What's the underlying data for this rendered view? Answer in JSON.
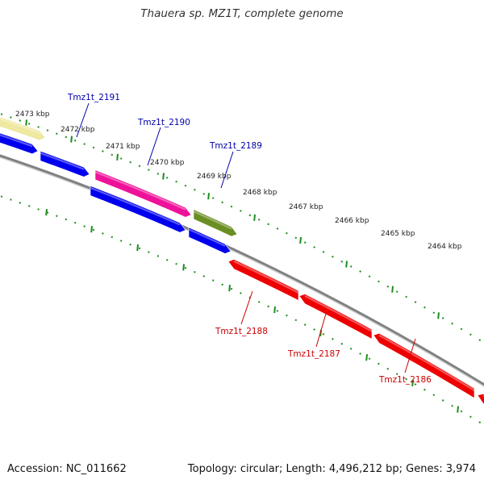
{
  "title": "Thauera sp. MZ1T, complete genome",
  "footer": {
    "accession": "Accession: NC_011662",
    "stats": "Topology: circular; Length: 4,496,212 bp; Genes: 3,974"
  },
  "colors": {
    "backbone": "#808080",
    "tick": "#1e8c1e",
    "forward_label": "#0000aa",
    "reverse_label": "#cc0000"
  },
  "kbp_ticks": [
    {
      "label": "2473 kbp"
    },
    {
      "label": "2472 kbp"
    },
    {
      "label": "2471 kbp"
    },
    {
      "label": "2470 kbp"
    },
    {
      "label": "2469 kbp"
    },
    {
      "label": "2468 kbp"
    },
    {
      "label": "2467 kbp"
    },
    {
      "label": "2466 kbp"
    },
    {
      "label": "2465 kbp"
    },
    {
      "label": "2464 kbp"
    }
  ],
  "genes": [
    {
      "name": "",
      "strand": "+",
      "color": "#eee8a0"
    },
    {
      "name": "",
      "strand": "+",
      "color": "#0000ee"
    },
    {
      "name": "",
      "strand": "+",
      "color": "#0000ee"
    },
    {
      "name": "",
      "strand": "+",
      "color": "#0000ee"
    },
    {
      "name": "",
      "strand": "+",
      "color": "#0000ee"
    },
    {
      "name": "Tmz1t_2190",
      "strand": "+",
      "color": "#ee1199"
    },
    {
      "name": "Tmz1t_2189",
      "strand": "+",
      "color": "#6b8e23"
    },
    {
      "name": "Tmz1t_2188",
      "strand": "-",
      "color": "#ee0000"
    },
    {
      "name": "Tmz1t_2187",
      "strand": "-",
      "color": "#ee0000"
    },
    {
      "name": "Tmz1t_2186",
      "strand": "-",
      "color": "#ee0000"
    },
    {
      "name": "",
      "strand": "-",
      "color": "#ee0000"
    }
  ],
  "gene_labels": [
    {
      "text": "Tmz1t_2191",
      "strand": "+"
    },
    {
      "text": "Tmz1t_2190",
      "strand": "+"
    },
    {
      "text": "Tmz1t_2189",
      "strand": "+"
    },
    {
      "text": "Tmz1t_2188",
      "strand": "-"
    },
    {
      "text": "Tmz1t_2187",
      "strand": "-"
    },
    {
      "text": "Tmz1t_2186",
      "strand": "-"
    }
  ]
}
